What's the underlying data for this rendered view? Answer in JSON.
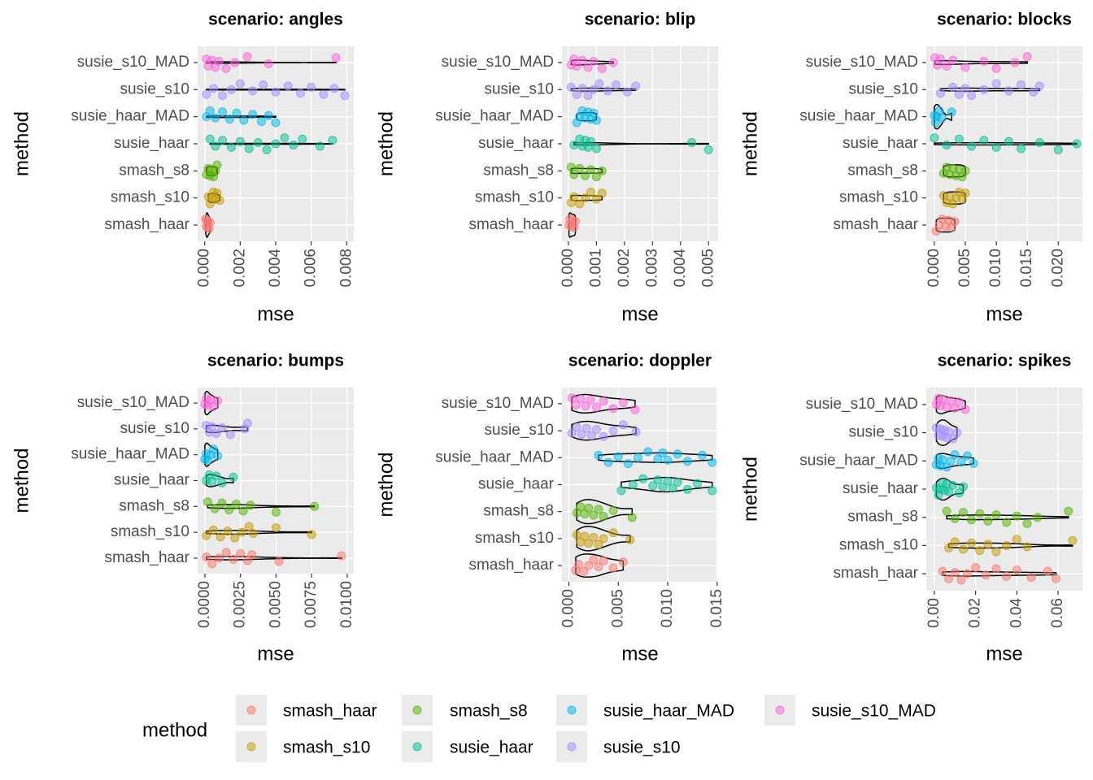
{
  "legend": {
    "title": "method",
    "position": "bottom"
  },
  "chart_data": [
    {
      "type": "violin-strip",
      "title": "scenario: angles",
      "x_label": "mse",
      "y_label": "method",
      "xlim": [
        -0.0004,
        0.0084
      ],
      "xticks": [
        {
          "value": 0,
          "label": "0.000"
        },
        {
          "value": 0.002,
          "label": "0.002"
        },
        {
          "value": 0.004,
          "label": "0.004"
        },
        {
          "value": 0.006,
          "label": "0.006"
        },
        {
          "value": 0.008,
          "label": "0.008"
        }
      ],
      "series": [
        {
          "name": "smash_haar",
          "color": "#F8766D",
          "values": [
            5e-05,
            0.0001,
            0.00012,
            0.00015,
            0.0002,
            0.00025,
            0.0003
          ]
        },
        {
          "name": "smash_s10",
          "color": "#C49A00",
          "values": [
            0.0002,
            0.0003,
            0.0004,
            0.0005,
            0.0006,
            0.0007,
            0.00085
          ]
        },
        {
          "name": "smash_s8",
          "color": "#53B400",
          "values": [
            0.0001,
            0.0002,
            0.0003,
            0.0004,
            0.0005,
            0.0006,
            0.0007
          ]
        },
        {
          "name": "susie_haar",
          "color": "#00C094",
          "values": [
            0.0003,
            0.0006,
            0.001,
            0.0015,
            0.002,
            0.0025,
            0.003,
            0.0035,
            0.004,
            0.0045,
            0.005,
            0.0055,
            0.0065,
            0.0072
          ]
        },
        {
          "name": "susie_haar_MAD",
          "color": "#00B6EB",
          "values": [
            0.0001,
            0.0003,
            0.0006,
            0.001,
            0.0014,
            0.0018,
            0.0022,
            0.0027,
            0.0032,
            0.0036,
            0.004
          ]
        },
        {
          "name": "susie_s10",
          "color": "#A58AFF",
          "values": [
            0.0001,
            0.0005,
            0.001,
            0.0015,
            0.002,
            0.0027,
            0.0033,
            0.004,
            0.0047,
            0.0054,
            0.006,
            0.0067,
            0.0073,
            0.0079
          ]
        },
        {
          "name": "susie_s10_MAD",
          "color": "#FB61D7",
          "values": [
            0.0001,
            0.0002,
            0.0004,
            0.0006,
            0.0008,
            0.0012,
            0.0017,
            0.0024,
            0.0036,
            0.0074
          ]
        }
      ]
    },
    {
      "type": "violin-strip",
      "title": "scenario: blip",
      "x_label": "mse",
      "y_label": "method",
      "xlim": [
        -0.00023,
        0.00534
      ],
      "xticks": [
        {
          "value": 0,
          "label": "0.000"
        },
        {
          "value": 0.001,
          "label": "0.001"
        },
        {
          "value": 0.002,
          "label": "0.002"
        },
        {
          "value": 0.003,
          "label": "0.003"
        },
        {
          "value": 0.004,
          "label": "0.004"
        },
        {
          "value": 0.005,
          "label": "0.005"
        }
      ],
      "series": [
        {
          "name": "smash_haar",
          "color": "#F8766D",
          "values": [
            2e-05,
            5e-05,
            0.0001,
            0.00015,
            0.0002,
            0.00025
          ]
        },
        {
          "name": "smash_s10",
          "color": "#C49A00",
          "values": [
            0.0001,
            0.0002,
            0.0004,
            0.0006,
            0.0008,
            0.001,
            0.0012
          ]
        },
        {
          "name": "smash_s8",
          "color": "#53B400",
          "values": [
            0.0001,
            0.0002,
            0.0004,
            0.0006,
            0.0008,
            0.001,
            0.0012
          ]
        },
        {
          "name": "susie_haar",
          "color": "#00C094",
          "values": [
            0.0002,
            0.0004,
            0.0005,
            0.0006,
            0.0007,
            0.0008,
            0.001,
            0.0044,
            0.005
          ]
        },
        {
          "name": "susie_haar_MAD",
          "color": "#00B6EB",
          "values": [
            0.0003,
            0.0004,
            0.0005,
            0.0006,
            0.0007,
            0.0008,
            0.0009,
            0.001
          ]
        },
        {
          "name": "susie_s10",
          "color": "#A58AFF",
          "values": [
            0.0001,
            0.0003,
            0.0005,
            0.0007,
            0.0009,
            0.0011,
            0.0014,
            0.0017,
            0.0021,
            0.0024
          ]
        },
        {
          "name": "susie_s10_MAD",
          "color": "#FB61D7",
          "values": [
            0.0001,
            0.0002,
            0.0003,
            0.0005,
            0.0007,
            0.0009,
            0.0012,
            0.0016
          ]
        }
      ]
    },
    {
      "type": "violin-strip",
      "title": "scenario: blocks",
      "x_label": "mse",
      "y_label": "method",
      "xlim": [
        -0.0013,
        0.0239
      ],
      "xticks": [
        {
          "value": 0,
          "label": "0.000"
        },
        {
          "value": 0.005,
          "label": "0.005"
        },
        {
          "value": 0.01,
          "label": "0.010"
        },
        {
          "value": 0.015,
          "label": "0.015"
        },
        {
          "value": 0.02,
          "label": "0.020"
        }
      ],
      "series": [
        {
          "name": "smash_haar",
          "color": "#F8766D",
          "values": [
            0.0003,
            0.0008,
            0.0013,
            0.0018,
            0.0023,
            0.0028,
            0.0033
          ]
        },
        {
          "name": "smash_s10",
          "color": "#C49A00",
          "values": [
            0.0015,
            0.002,
            0.0025,
            0.003,
            0.0035,
            0.004,
            0.0045,
            0.005
          ]
        },
        {
          "name": "smash_s8",
          "color": "#53B400",
          "values": [
            0.0015,
            0.002,
            0.0025,
            0.003,
            0.0035,
            0.004,
            0.0045,
            0.005
          ]
        },
        {
          "name": "susie_haar",
          "color": "#00C094",
          "values": [
            0,
            0.002,
            0.004,
            0.006,
            0.008,
            0.01,
            0.012,
            0.014,
            0.017,
            0.02,
            0.023
          ]
        },
        {
          "name": "susie_haar_MAD",
          "color": "#00B6EB",
          "values": [
            0,
            0.0002,
            0.0004,
            0.0008,
            0.0012,
            0.0028
          ]
        },
        {
          "name": "susie_s10",
          "color": "#A58AFF",
          "values": [
            0.001,
            0.003,
            0.004,
            0.005,
            0.006,
            0.008,
            0.01,
            0.012,
            0.014,
            0.016,
            0.017
          ]
        },
        {
          "name": "susie_s10_MAD",
          "color": "#FB61D7",
          "values": [
            0.0001,
            0.0005,
            0.001,
            0.002,
            0.003,
            0.005,
            0.008,
            0.01,
            0.013,
            0.015
          ]
        }
      ]
    },
    {
      "type": "violin-strip",
      "title": "scenario: bumps",
      "x_label": "mse",
      "y_label": "method",
      "xlim": [
        -0.00051,
        0.01046
      ],
      "xticks": [
        {
          "value": 0,
          "label": "0.0000"
        },
        {
          "value": 0.0025,
          "label": "0.0025"
        },
        {
          "value": 0.005,
          "label": "0.0050"
        },
        {
          "value": 0.0075,
          "label": "0.0075"
        },
        {
          "value": 0.01,
          "label": "0.0100"
        }
      ],
      "series": [
        {
          "name": "smash_haar",
          "color": "#F8766D",
          "values": [
            0.0001,
            0.0005,
            0.001,
            0.0015,
            0.002,
            0.0025,
            0.003,
            0.0033,
            0.0052,
            0.0096
          ]
        },
        {
          "name": "smash_s10",
          "color": "#C49A00",
          "values": [
            0.0001,
            0.0006,
            0.0011,
            0.0016,
            0.0021,
            0.0026,
            0.0031,
            0.0034,
            0.005,
            0.0075
          ]
        },
        {
          "name": "smash_s8",
          "color": "#53B400",
          "values": [
            0.0002,
            0.0007,
            0.0012,
            0.0017,
            0.0022,
            0.0027,
            0.0032,
            0.005,
            0.0077
          ]
        },
        {
          "name": "susie_haar",
          "color": "#00C094",
          "values": [
            0.0001,
            0.0003,
            0.0005,
            0.0008,
            0.0012,
            0.002
          ]
        },
        {
          "name": "susie_haar_MAD",
          "color": "#00B6EB",
          "values": [
            0,
            0.0001,
            0.0002,
            0.0004,
            0.0006,
            0.0009
          ]
        },
        {
          "name": "susie_s10",
          "color": "#A58AFF",
          "values": [
            0.0001,
            0.0003,
            0.0005,
            0.0008,
            0.0012,
            0.0018,
            0.0028,
            0.003
          ]
        },
        {
          "name": "susie_s10_MAD",
          "color": "#FB61D7",
          "values": [
            0,
            0.0001,
            0.0002,
            0.0004,
            0.0006,
            0.0009
          ]
        }
      ]
    },
    {
      "type": "violin-strip",
      "title": "scenario: doppler",
      "x_label": "mse",
      "y_label": "method",
      "xlim": [
        -0.0007,
        0.0151
      ],
      "xticks": [
        {
          "value": 0,
          "label": "0.000"
        },
        {
          "value": 0.005,
          "label": "0.005"
        },
        {
          "value": 0.01,
          "label": "0.010"
        },
        {
          "value": 0.015,
          "label": "0.015"
        }
      ],
      "series": [
        {
          "name": "smash_haar",
          "color": "#F8766D",
          "values": [
            0.0007,
            0.001,
            0.0015,
            0.002,
            0.0025,
            0.003,
            0.0035,
            0.0045,
            0.0055
          ]
        },
        {
          "name": "smash_s10",
          "color": "#C49A00",
          "values": [
            0.0008,
            0.0012,
            0.0016,
            0.002,
            0.0025,
            0.003,
            0.0035,
            0.0045,
            0.0062
          ]
        },
        {
          "name": "smash_s8",
          "color": "#53B400",
          "values": [
            0.0008,
            0.0012,
            0.0016,
            0.002,
            0.0025,
            0.003,
            0.0035,
            0.0045,
            0.0064
          ]
        },
        {
          "name": "susie_haar",
          "color": "#00C094",
          "values": [
            0.0053,
            0.0065,
            0.0075,
            0.0085,
            0.009,
            0.0095,
            0.01,
            0.0105,
            0.011,
            0.012,
            0.013,
            0.0145
          ]
        },
        {
          "name": "susie_haar_MAD",
          "color": "#00B6EB",
          "values": [
            0.003,
            0.004,
            0.005,
            0.006,
            0.007,
            0.008,
            0.009,
            0.0095,
            0.01,
            0.011,
            0.012,
            0.0135,
            0.0145
          ]
        },
        {
          "name": "susie_s10",
          "color": "#A58AFF",
          "values": [
            0.0003,
            0.0008,
            0.0013,
            0.0018,
            0.0023,
            0.0028,
            0.0035,
            0.0045,
            0.0055,
            0.0068
          ]
        },
        {
          "name": "susie_s10_MAD",
          "color": "#FB61D7",
          "values": [
            0.0003,
            0.0007,
            0.0012,
            0.0017,
            0.0022,
            0.0028,
            0.0035,
            0.0045,
            0.0055,
            0.0067
          ]
        }
      ]
    },
    {
      "type": "violin-strip",
      "title": "scenario: spikes",
      "x_label": "mse",
      "y_label": "method",
      "xlim": [
        -0.0039,
        0.0718
      ],
      "xticks": [
        {
          "value": 0,
          "label": "0.00"
        },
        {
          "value": 0.02,
          "label": "0.02"
        },
        {
          "value": 0.04,
          "label": "0.04"
        },
        {
          "value": 0.06,
          "label": "0.06"
        }
      ],
      "series": [
        {
          "name": "smash_haar",
          "color": "#F8766D",
          "values": [
            0.004,
            0.007,
            0.01,
            0.013,
            0.016,
            0.02,
            0.025,
            0.03,
            0.035,
            0.04,
            0.047,
            0.055,
            0.059
          ]
        },
        {
          "name": "smash_s10",
          "color": "#C49A00",
          "values": [
            0.007,
            0.01,
            0.014,
            0.018,
            0.022,
            0.026,
            0.03,
            0.035,
            0.04,
            0.045,
            0.067
          ]
        },
        {
          "name": "smash_s8",
          "color": "#53B400",
          "values": [
            0.006,
            0.01,
            0.014,
            0.018,
            0.022,
            0.026,
            0.03,
            0.035,
            0.04,
            0.045,
            0.05,
            0.065
          ]
        },
        {
          "name": "susie_haar",
          "color": "#00C094",
          "values": [
            0.001,
            0.002,
            0.003,
            0.004,
            0.005,
            0.006,
            0.007,
            0.009,
            0.012,
            0.014
          ]
        },
        {
          "name": "susie_haar_MAD",
          "color": "#00B6EB",
          "values": [
            0.001,
            0.002,
            0.003,
            0.004,
            0.006,
            0.008,
            0.01,
            0.013,
            0.016,
            0.019
          ]
        },
        {
          "name": "susie_s10",
          "color": "#A58AFF",
          "values": [
            0.001,
            0.002,
            0.003,
            0.004,
            0.005,
            0.006,
            0.007,
            0.009,
            0.011
          ]
        },
        {
          "name": "susie_s10_MAD",
          "color": "#FB61D7",
          "values": [
            0.001,
            0.002,
            0.003,
            0.004,
            0.006,
            0.008,
            0.01,
            0.012,
            0.015
          ]
        }
      ]
    }
  ]
}
